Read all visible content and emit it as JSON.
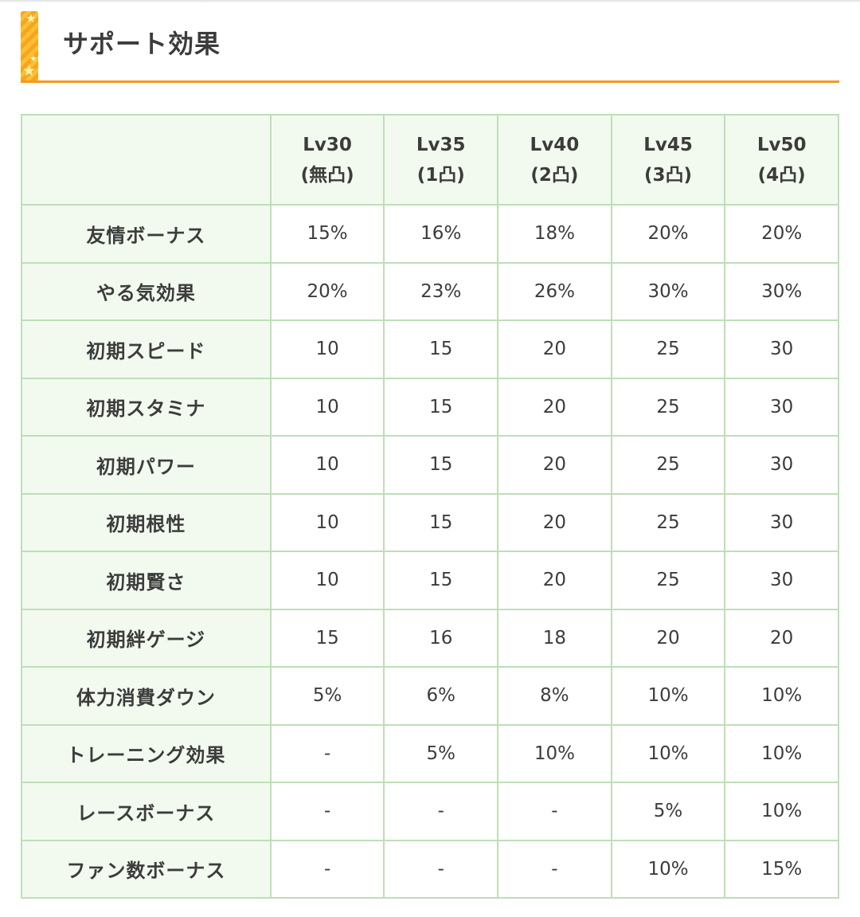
{
  "section": {
    "title": "サポート効果"
  },
  "table": {
    "corner_label": "",
    "columns": [
      {
        "level": "Lv30",
        "breakthrough": "(無凸)"
      },
      {
        "level": "Lv35",
        "breakthrough": "(1凸)"
      },
      {
        "level": "Lv40",
        "breakthrough": "(2凸)"
      },
      {
        "level": "Lv45",
        "breakthrough": "(3凸)"
      },
      {
        "level": "Lv50",
        "breakthrough": "(4凸)"
      }
    ],
    "rows": [
      {
        "label": "友情ボーナス",
        "values": [
          "15%",
          "16%",
          "18%",
          "20%",
          "20%"
        ]
      },
      {
        "label": "やる気効果",
        "values": [
          "20%",
          "23%",
          "26%",
          "30%",
          "30%"
        ]
      },
      {
        "label": "初期スピード",
        "values": [
          "10",
          "15",
          "20",
          "25",
          "30"
        ]
      },
      {
        "label": "初期スタミナ",
        "values": [
          "10",
          "15",
          "20",
          "25",
          "30"
        ]
      },
      {
        "label": "初期パワー",
        "values": [
          "10",
          "15",
          "20",
          "25",
          "30"
        ]
      },
      {
        "label": "初期根性",
        "values": [
          "10",
          "15",
          "20",
          "25",
          "30"
        ]
      },
      {
        "label": "初期賢さ",
        "values": [
          "10",
          "15",
          "20",
          "25",
          "30"
        ]
      },
      {
        "label": "初期絆ゲージ",
        "values": [
          "15",
          "16",
          "18",
          "20",
          "20"
        ]
      },
      {
        "label": "体力消費ダウン",
        "values": [
          "5%",
          "6%",
          "8%",
          "10%",
          "10%"
        ]
      },
      {
        "label": "トレーニング効果",
        "values": [
          "-",
          "5%",
          "10%",
          "10%",
          "10%"
        ]
      },
      {
        "label": "レースボーナス",
        "values": [
          "-",
          "-",
          "-",
          "5%",
          "10%"
        ]
      },
      {
        "label": "ファン数ボーナス",
        "values": [
          "-",
          "-",
          "-",
          "10%",
          "15%"
        ]
      }
    ]
  },
  "colors": {
    "accent_orange": "#f39a1e",
    "table_border": "#bedeb8",
    "header_background": "#f2faef",
    "text": "#3c3c3c"
  },
  "icons": {
    "heading_marker": "star-striped-bar-icon"
  }
}
